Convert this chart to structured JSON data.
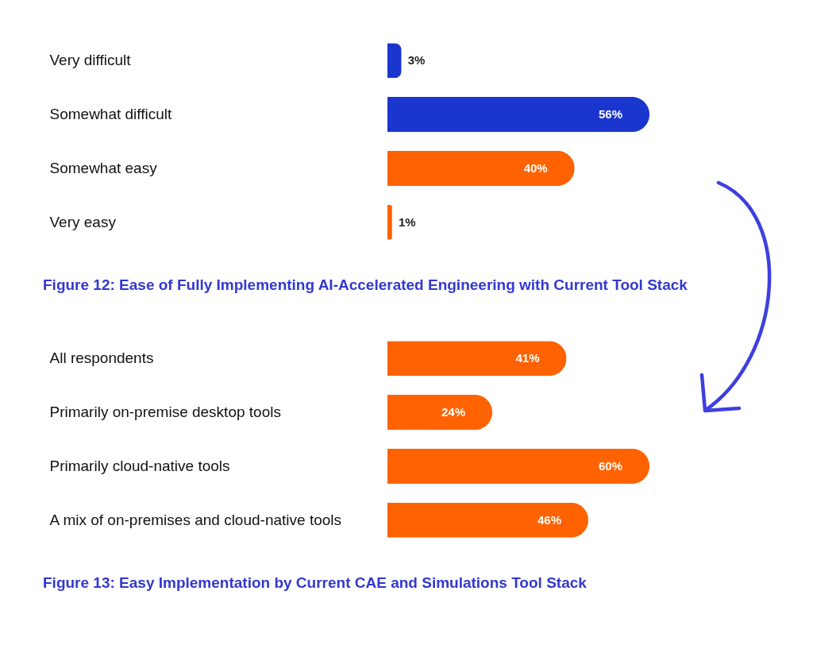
{
  "chart_data": [
    {
      "type": "bar",
      "orientation": "horizontal",
      "title": "Figure 12: Ease of Fully Implementing AI-Accelerated Engineering with Current Tool Stack",
      "categories": [
        "Very difficult",
        "Somewhat difficult",
        "Somewhat easy",
        "Very easy"
      ],
      "values": [
        3,
        56,
        40,
        1
      ],
      "value_labels": [
        "3%",
        "56%",
        "40%",
        "1%"
      ],
      "colors": [
        "#1a36cf",
        "#1a36cf",
        "#ff6200",
        "#ff6200"
      ]
    },
    {
      "type": "bar",
      "orientation": "horizontal",
      "title": "Figure 13: Easy Implementation by Current CAE and Simulations Tool Stack",
      "categories": [
        "All respondents",
        "Primarily on-premise desktop tools",
        "Primarily cloud-native tools",
        "A mix of on-premises and cloud-native tools"
      ],
      "values": [
        41,
        24,
        60,
        46
      ],
      "value_labels": [
        "41%",
        "24%",
        "60%",
        "46%"
      ],
      "colors": [
        "#ff6200",
        "#ff6200",
        "#ff6200",
        "#ff6200"
      ]
    }
  ]
}
